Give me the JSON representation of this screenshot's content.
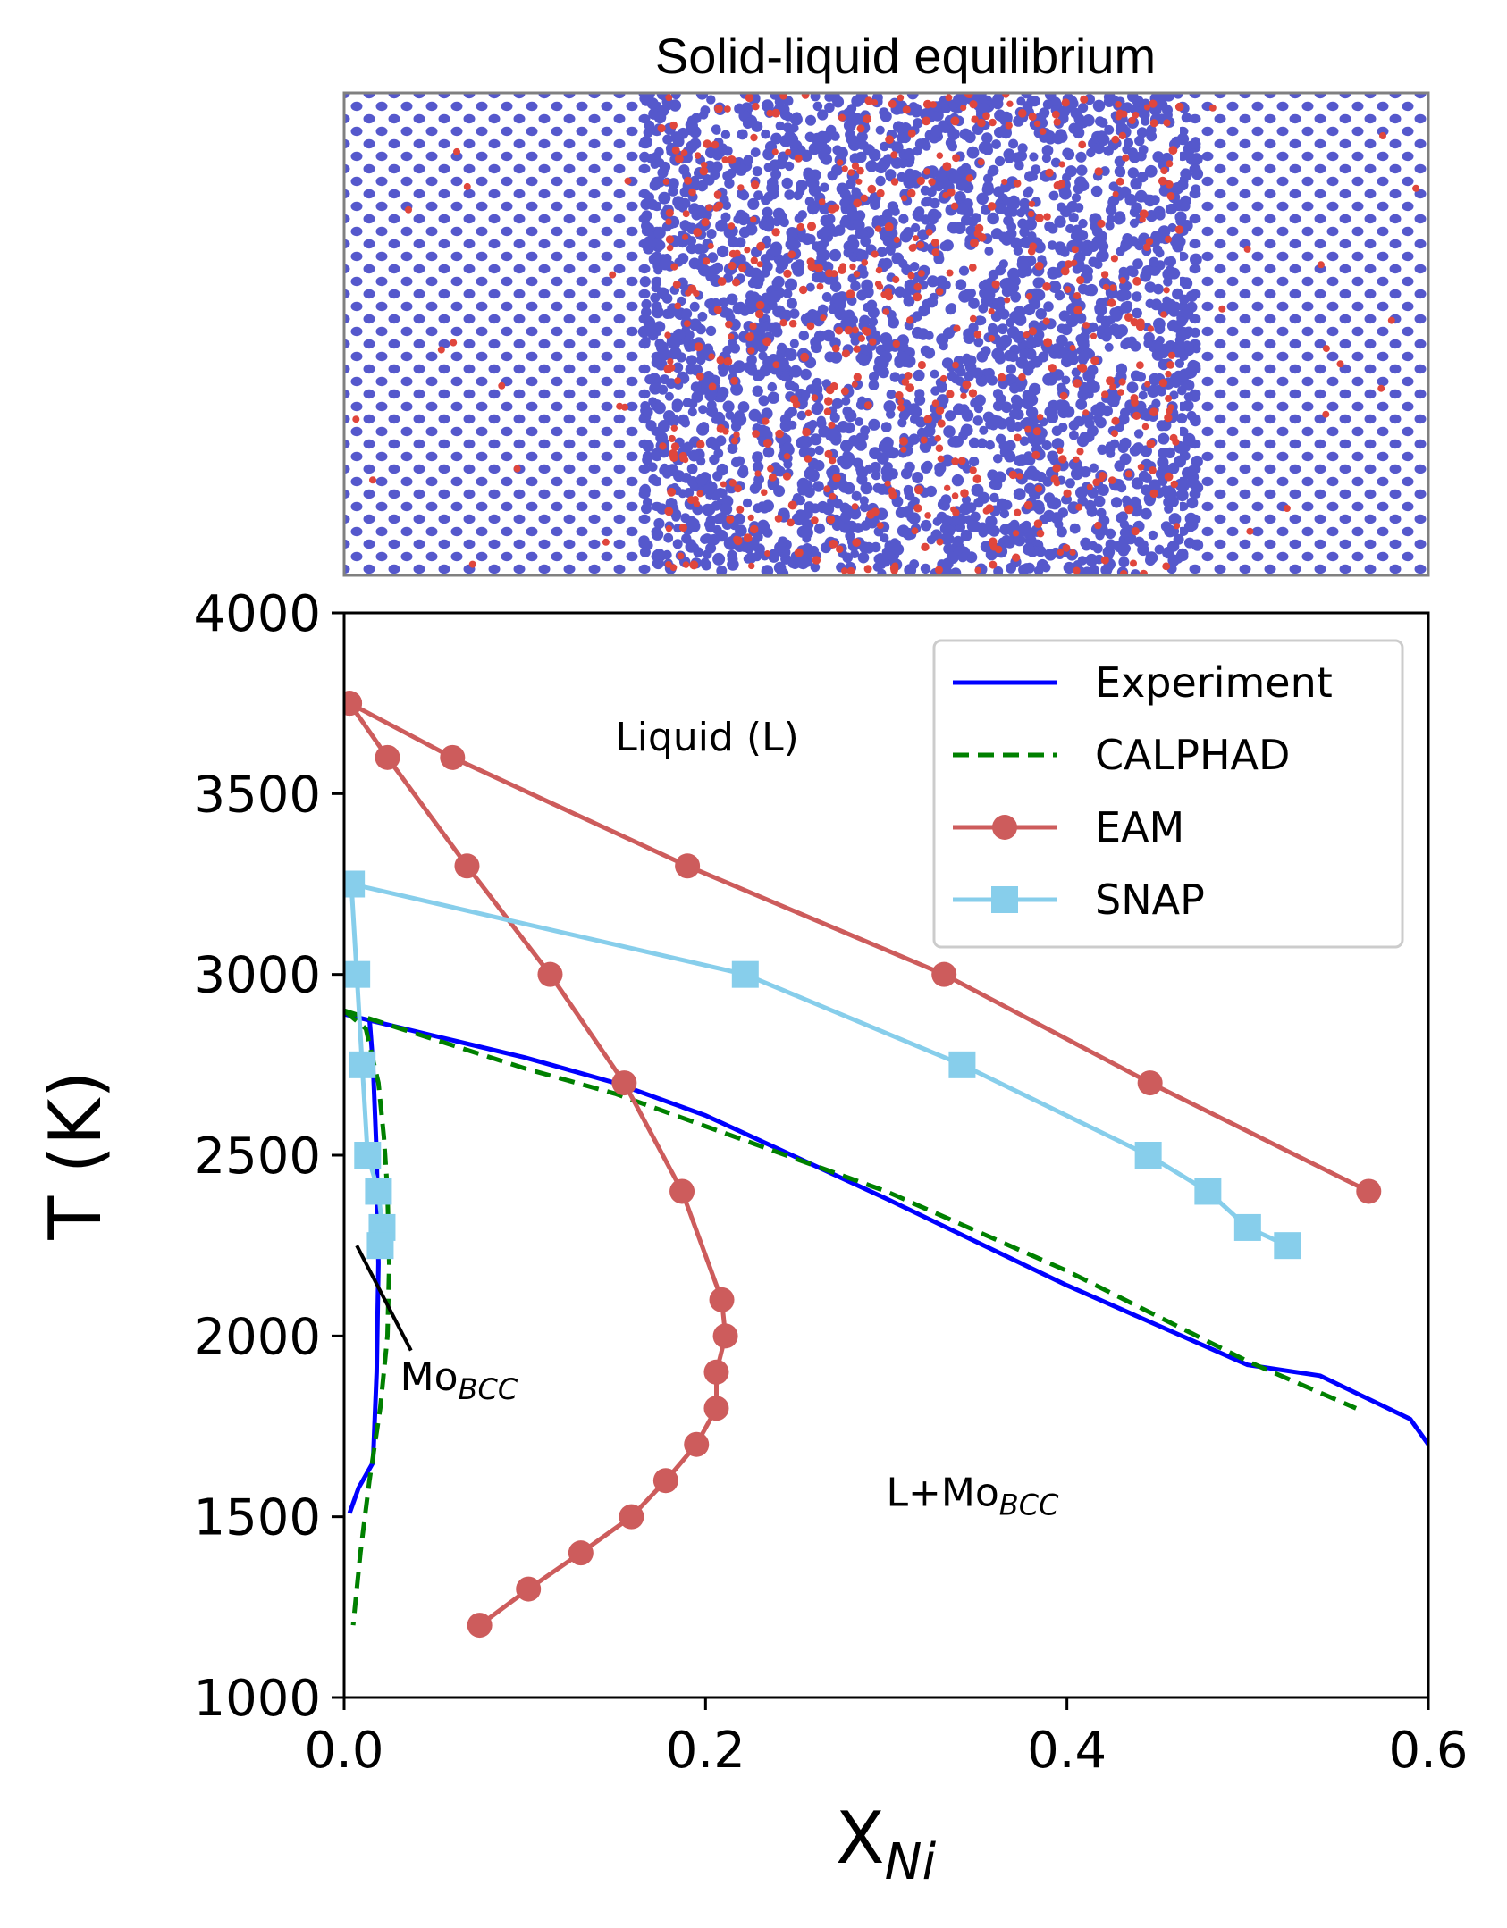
{
  "inset": {
    "title": "Solid-liquid equilibrium",
    "colors": {
      "mo_atom": "#5558cc",
      "ni_atom": "#e0463c"
    }
  },
  "chart_data": {
    "type": "line",
    "title": "",
    "xlabel": "X",
    "xlabel_sub": "Ni",
    "ylabel": "T (K)",
    "xlim": [
      0.0,
      0.6
    ],
    "ylim": [
      1000,
      4000
    ],
    "xticks": [
      0.0,
      0.2,
      0.4,
      0.6
    ],
    "xtick_labels": [
      "0.0",
      "0.2",
      "0.4",
      "0.6"
    ],
    "yticks": [
      1000,
      1500,
      2000,
      2500,
      3000,
      3500,
      4000
    ],
    "ytick_labels": [
      "1000",
      "1500",
      "2000",
      "2500",
      "3000",
      "3500",
      "4000"
    ],
    "grid": false,
    "legend_position": "top-right",
    "annotations": [
      {
        "text": "Liquid (L)",
        "x": 0.15,
        "y": 3620
      },
      {
        "text": "Mo",
        "sub": "BCC",
        "x": 0.031,
        "y": 1850
      },
      {
        "text": "L+Mo",
        "sub": "BCC",
        "x": 0.3,
        "y": 1530
      }
    ],
    "pointer_line": {
      "x": [
        0.007,
        0.037
      ],
      "y": [
        2250,
        1960
      ],
      "color": "#000000"
    },
    "series": [
      {
        "name": "Experiment",
        "style": "solid",
        "color": "#0000ff",
        "curves": [
          {
            "x": [
              0.0,
              0.05,
              0.1,
              0.15,
              0.2,
              0.3,
              0.4,
              0.5,
              0.54,
              0.59,
              0.6
            ],
            "y": [
              2890,
              2830,
              2770,
              2700,
              2610,
              2380,
              2140,
              1920,
              1890,
              1770,
              1700
            ]
          },
          {
            "x": [
              0.014,
              0.016,
              0.018,
              0.019,
              0.018,
              0.016,
              0.008,
              0.003
            ],
            "y": [
              2880,
              2750,
              2500,
              2200,
              1900,
              1650,
              1580,
              1510
            ]
          }
        ]
      },
      {
        "name": "CALPHAD",
        "style": "dashed",
        "color": "#008000",
        "curves": [
          {
            "x": [
              0.0,
              0.05,
              0.1,
              0.15,
              0.2,
              0.3,
              0.4,
              0.5,
              0.56
            ],
            "y": [
              2900,
              2820,
              2740,
              2670,
              2580,
              2400,
              2180,
              1930,
              1800
            ]
          },
          {
            "x": [
              0.0,
              0.012,
              0.019,
              0.022,
              0.024,
              0.025,
              0.024,
              0.02,
              0.014,
              0.009,
              0.005
            ],
            "y": [
              2900,
              2850,
              2700,
              2550,
              2400,
              2200,
              2000,
              1800,
              1600,
              1400,
              1200
            ]
          }
        ]
      },
      {
        "name": "EAM",
        "style": "solid-marker-circle",
        "color": "#cd5c5c",
        "curves": [
          {
            "x": [
              0.003,
              0.06,
              0.19,
              0.332,
              0.446,
              0.567
            ],
            "y": [
              3750,
              3600,
              3300,
              3000,
              2700,
              2400
            ]
          },
          {
            "x": [
              0.003,
              0.024,
              0.068,
              0.114,
              0.155,
              0.187,
              0.209,
              0.211,
              0.206,
              0.206,
              0.195,
              0.178,
              0.159,
              0.131,
              0.102,
              0.075
            ],
            "y": [
              3750,
              3600,
              3300,
              3000,
              2700,
              2400,
              2100,
              2000,
              1900,
              1800,
              1700,
              1600,
              1500,
              1400,
              1300,
              1200
            ]
          }
        ]
      },
      {
        "name": "SNAP",
        "style": "solid-marker-square",
        "color": "#87ceeb",
        "curves": [
          {
            "x": [
              0.004,
              0.222,
              0.342,
              0.445,
              0.478,
              0.5,
              0.522
            ],
            "y": [
              3250,
              3000,
              2750,
              2500,
              2400,
              2300,
              2250
            ]
          },
          {
            "x": [
              0.004,
              0.007,
              0.01,
              0.013,
              0.019,
              0.021,
              0.02
            ],
            "y": [
              3250,
              3000,
              2750,
              2500,
              2400,
              2300,
              2250
            ]
          }
        ]
      }
    ]
  }
}
